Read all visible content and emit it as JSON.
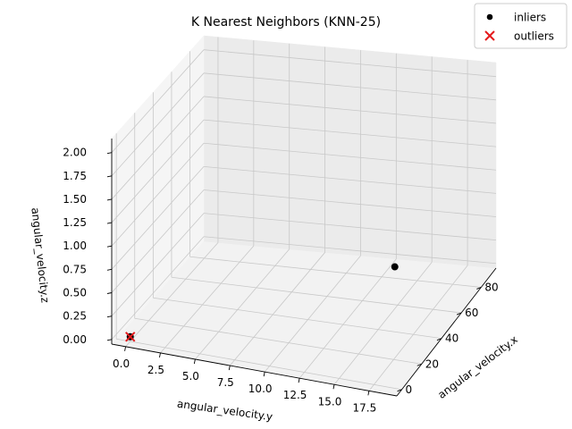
{
  "chart_data": {
    "type": "scatter",
    "projection": "3d",
    "title": "K Nearest Neighbors (KNN-25)",
    "xlabel": "angular_velocity.x",
    "ylabel": "angular_velocity.y",
    "zlabel": "angular_velocity.z",
    "xlim": [
      -5,
      95
    ],
    "ylim": [
      -1,
      19.5
    ],
    "zlim": [
      -0.05,
      2.15
    ],
    "x_ticks": [
      0,
      20,
      40,
      60,
      80
    ],
    "y_ticks": [
      0.0,
      2.5,
      5.0,
      7.5,
      10.0,
      12.5,
      15.0,
      17.5
    ],
    "z_ticks": [
      0.0,
      0.25,
      0.5,
      0.75,
      1.0,
      1.25,
      1.5,
      1.75,
      2.0
    ],
    "x_tick_labels": [
      "0",
      "20",
      "40",
      "60",
      "80"
    ],
    "y_tick_labels": [
      "0.0",
      "2.5",
      "5.0",
      "7.5",
      "10.0",
      "12.5",
      "15.0",
      "17.5"
    ],
    "z_tick_labels": [
      "0.00",
      "0.25",
      "0.50",
      "0.75",
      "1.00",
      "1.25",
      "1.50",
      "1.75",
      "2.00"
    ],
    "grid": true,
    "legend_position": "top-right",
    "series": [
      {
        "name": "inliers",
        "marker": "circle",
        "color": "#000000",
        "points": [
          {
            "x": 0,
            "y": 19,
            "z": 1.25
          },
          {
            "x": 0,
            "y": 0,
            "z": 0
          }
        ]
      },
      {
        "name": "outliers",
        "marker": "x",
        "color": "#e41a1c",
        "points": [
          {
            "x": 0,
            "y": 0,
            "z": 0
          }
        ]
      }
    ]
  }
}
